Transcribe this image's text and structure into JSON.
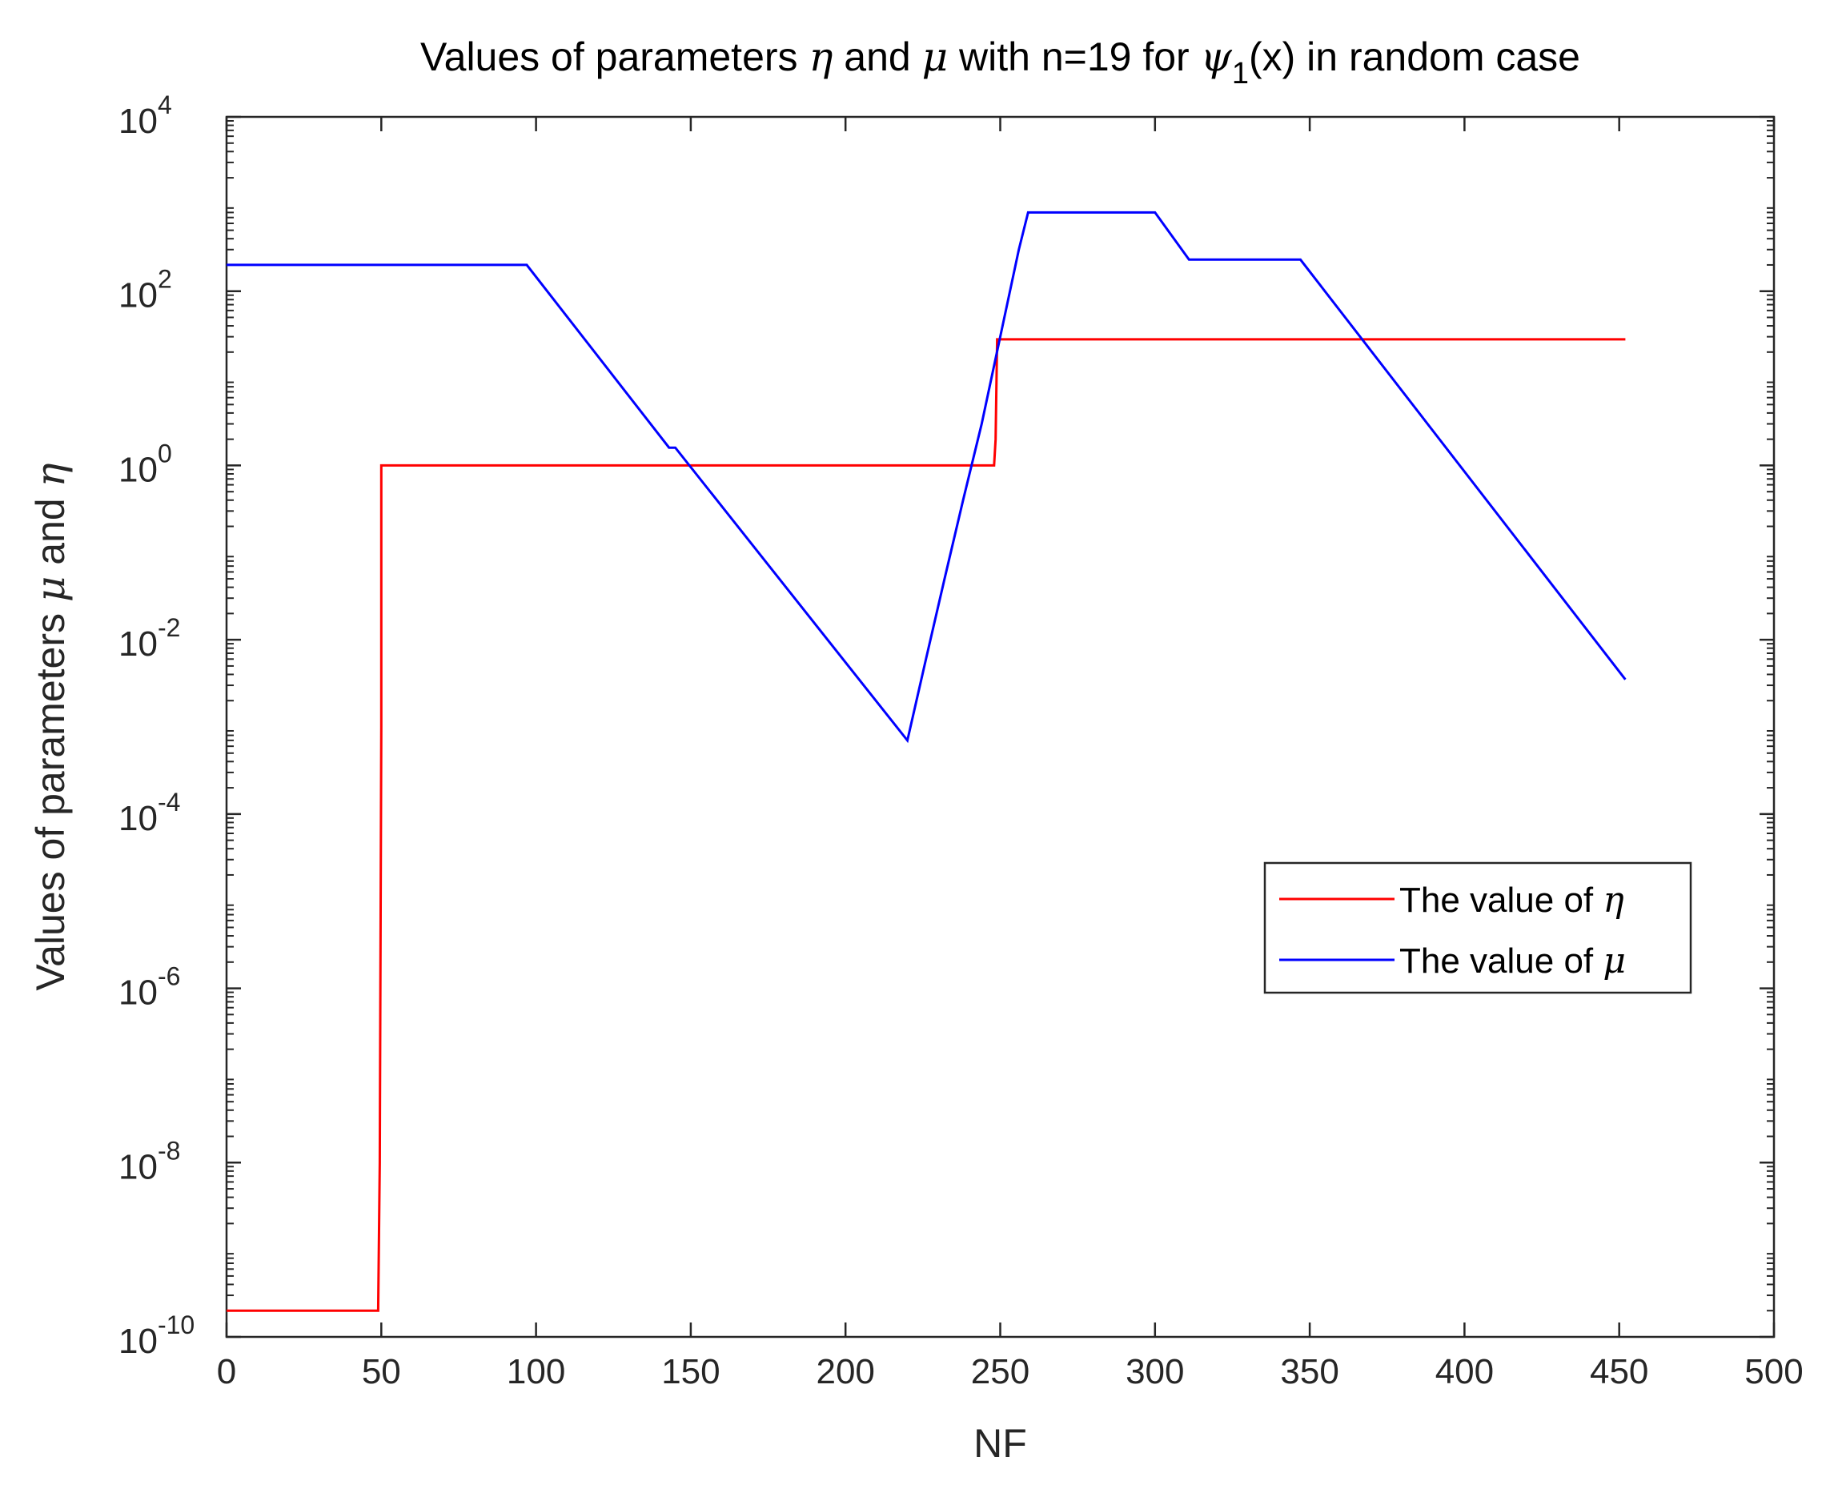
{
  "chart_data": {
    "type": "line",
    "title_parts": [
      "Values of parameters ",
      "η",
      " and ",
      "μ",
      " with n=19 for ",
      "ψ",
      "1",
      "(x) in random case"
    ],
    "xlabel": "NF",
    "ylabel_parts": [
      "Values of parameters ",
      "μ",
      " and ",
      "η"
    ],
    "xlim": [
      0,
      500
    ],
    "ylim": [
      1e-10,
      10000.0
    ],
    "yscale": "log",
    "x_ticks": [
      0,
      50,
      100,
      150,
      200,
      250,
      300,
      350,
      400,
      450,
      500
    ],
    "x_tick_labels": [
      "0",
      "50",
      "100",
      "150",
      "200",
      "250",
      "300",
      "350",
      "400",
      "450",
      "500"
    ],
    "y_ticks": [
      1e-10,
      1e-08,
      1e-06,
      0.0001,
      0.01,
      1,
      100.0,
      10000.0
    ],
    "y_tick_labels": [
      {
        "base": "10",
        "exp": "-10"
      },
      {
        "base": "10",
        "exp": "-8"
      },
      {
        "base": "10",
        "exp": "-6"
      },
      {
        "base": "10",
        "exp": "-4"
      },
      {
        "base": "10",
        "exp": "-2"
      },
      {
        "base": "10",
        "exp": "0"
      },
      {
        "base": "10",
        "exp": "2"
      },
      {
        "base": "10",
        "exp": "4"
      }
    ],
    "grid": false,
    "legend_position": "center-right",
    "series": [
      {
        "name_parts": [
          "The value of ",
          "η"
        ],
        "color": "#ff0000",
        "points": [
          [
            0,
            2e-10
          ],
          [
            49,
            2e-10
          ],
          [
            49.5,
            1e-08
          ],
          [
            50,
            0.001
          ],
          [
            50,
            1
          ],
          [
            248,
            1
          ],
          [
            248.5,
            2
          ],
          [
            249,
            28
          ],
          [
            452,
            28
          ]
        ]
      },
      {
        "name_parts": [
          "The value of ",
          "μ"
        ],
        "color": "#0000ff",
        "points": [
          [
            0,
            200
          ],
          [
            97,
            200
          ],
          [
            143,
            1.6
          ],
          [
            145,
            1.6
          ],
          [
            220,
            0.0007
          ],
          [
            226,
            0.006
          ],
          [
            232,
            0.05
          ],
          [
            238,
            0.4
          ],
          [
            244,
            3
          ],
          [
            250,
            30
          ],
          [
            256,
            300
          ],
          [
            259,
            800
          ],
          [
            300,
            800
          ],
          [
            311,
            230
          ],
          [
            347,
            230
          ],
          [
            452,
            0.0035
          ]
        ]
      }
    ]
  }
}
